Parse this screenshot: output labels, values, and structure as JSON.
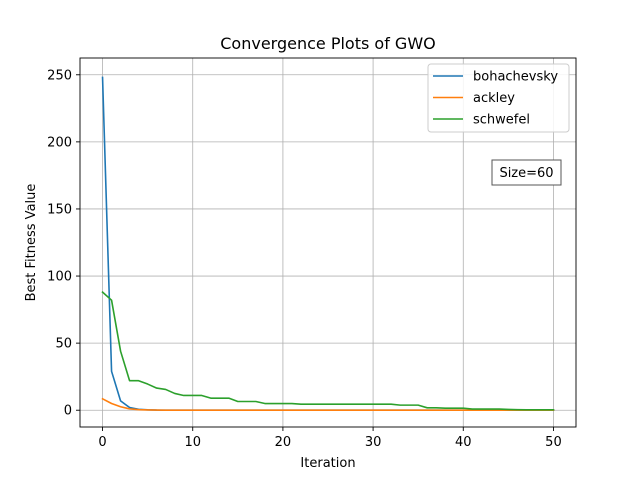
{
  "chart_data": {
    "type": "line",
    "title": "Convergence Plots of GWO",
    "xlabel": "Iteration",
    "ylabel": "Best Fitness Value",
    "xlim": [
      -2.5,
      52.5
    ],
    "ylim": [
      -12.5,
      262.5
    ],
    "xticks": [
      0,
      10,
      20,
      30,
      40,
      50
    ],
    "yticks": [
      0,
      50,
      100,
      150,
      200,
      250
    ],
    "grid": true,
    "legend_position": "top-right",
    "annotation": "Size=60",
    "series": [
      {
        "name": "bohachevsky",
        "color": "#1f77b4",
        "x": [
          0,
          1,
          2,
          3,
          4,
          5,
          6,
          7,
          8,
          9,
          10,
          11,
          12,
          13,
          14,
          15,
          16,
          17,
          18,
          19,
          20,
          21,
          22,
          23,
          24,
          25,
          26,
          27,
          28,
          29,
          30,
          31,
          32,
          33,
          34,
          35,
          36,
          37,
          38,
          39,
          40,
          41,
          42,
          43,
          44,
          45,
          46,
          47,
          48,
          49,
          50
        ],
        "y": [
          248,
          29,
          7,
          2,
          0.7,
          0.3,
          0.1,
          0.05,
          0,
          0,
          0,
          0,
          0,
          0,
          0,
          0,
          0,
          0,
          0,
          0,
          0,
          0,
          0,
          0,
          0,
          0,
          0,
          0,
          0,
          0,
          0,
          0,
          0,
          0,
          0,
          0,
          0,
          0,
          0,
          0,
          0,
          0,
          0,
          0,
          0,
          0,
          0,
          0,
          0,
          0,
          0
        ]
      },
      {
        "name": "ackley",
        "color": "#ff7f0e",
        "x": [
          0,
          1,
          2,
          3,
          4,
          5,
          6,
          7,
          8,
          9,
          10,
          11,
          12,
          13,
          14,
          15,
          16,
          17,
          18,
          19,
          20,
          21,
          22,
          23,
          24,
          25,
          26,
          27,
          28,
          29,
          30,
          31,
          32,
          33,
          34,
          35,
          36,
          37,
          38,
          39,
          40,
          41,
          42,
          43,
          44,
          45,
          46,
          47,
          48,
          49,
          50
        ],
        "y": [
          8.5,
          5,
          2.6,
          1,
          0.4,
          0.2,
          0.1,
          0.05,
          0.02,
          0,
          0,
          0,
          0,
          0,
          0,
          0,
          0,
          0,
          0,
          0,
          0,
          0,
          0,
          0,
          0,
          0,
          0,
          0,
          0,
          0,
          0,
          0,
          0,
          0,
          0,
          0,
          0,
          0,
          0,
          0,
          0,
          0,
          0,
          0,
          0,
          0,
          0,
          0,
          0,
          0,
          0
        ]
      },
      {
        "name": "schwefel",
        "color": "#2ca02c",
        "x": [
          0,
          1,
          2,
          3,
          4,
          5,
          6,
          7,
          8,
          9,
          10,
          11,
          12,
          13,
          14,
          15,
          16,
          17,
          18,
          19,
          20,
          21,
          22,
          23,
          24,
          25,
          26,
          27,
          28,
          29,
          30,
          31,
          32,
          33,
          34,
          35,
          36,
          37,
          38,
          39,
          40,
          41,
          42,
          43,
          44,
          45,
          46,
          47,
          48,
          49,
          50
        ],
        "y": [
          88,
          82,
          44,
          22,
          22,
          19.5,
          16.5,
          15.5,
          12.5,
          11,
          11,
          11,
          9,
          9,
          9,
          6.5,
          6.5,
          6.5,
          5,
          5,
          5,
          5,
          4.5,
          4.5,
          4.5,
          4.5,
          4.5,
          4.5,
          4.5,
          4.5,
          4.5,
          4.5,
          4.5,
          3.8,
          3.8,
          3.8,
          1.8,
          1.8,
          1.5,
          1.5,
          1.5,
          0.9,
          0.9,
          0.9,
          0.9,
          0.6,
          0.4,
          0.3,
          0.3,
          0.3,
          0.3
        ]
      }
    ]
  }
}
